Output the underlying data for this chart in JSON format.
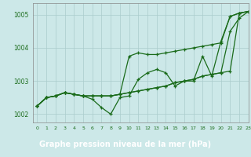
{
  "xlabel": "Graphe pression niveau de la mer (hPa)",
  "ylim": [
    1001.75,
    1005.35
  ],
  "xlim": [
    -0.5,
    23
  ],
  "yticks": [
    1002,
    1003,
    1004,
    1005
  ],
  "xticks": [
    0,
    1,
    2,
    3,
    4,
    5,
    6,
    7,
    8,
    9,
    10,
    11,
    12,
    13,
    14,
    15,
    16,
    17,
    18,
    19,
    20,
    21,
    22,
    23
  ],
  "bg_color": "#cce8e8",
  "line_color": "#1a6b1a",
  "lines": [
    [
      1002.25,
      1002.5,
      1002.55,
      1002.65,
      1002.6,
      1002.55,
      1002.45,
      1002.2,
      1002.0,
      1002.5,
      1002.55,
      1003.05,
      1003.25,
      1003.35,
      1003.25,
      1002.85,
      1003.0,
      1003.0,
      1003.75,
      1003.15,
      1004.2,
      1004.95,
      1005.05,
      1005.1
    ],
    [
      1002.25,
      1002.5,
      1002.55,
      1002.65,
      1002.6,
      1002.55,
      1002.55,
      1002.55,
      1002.55,
      1002.6,
      1002.65,
      1002.7,
      1002.75,
      1002.8,
      1002.85,
      1002.95,
      1003.0,
      1003.05,
      1003.15,
      1003.2,
      1003.25,
      1004.5,
      1004.9,
      1005.1
    ],
    [
      1002.25,
      1002.5,
      1002.55,
      1002.65,
      1002.6,
      1002.55,
      1002.55,
      1002.55,
      1002.55,
      1002.6,
      1003.75,
      1003.85,
      1003.8,
      1003.8,
      1003.85,
      1003.9,
      1003.95,
      1004.0,
      1004.05,
      1004.1,
      1004.15,
      1004.95,
      1005.05,
      1005.1
    ],
    [
      1002.25,
      1002.5,
      1002.55,
      1002.65,
      1002.6,
      1002.55,
      1002.55,
      1002.55,
      1002.55,
      1002.6,
      1002.65,
      1002.7,
      1002.75,
      1002.8,
      1002.85,
      1002.95,
      1003.0,
      1003.05,
      1003.15,
      1003.2,
      1003.25,
      1003.3,
      1005.05,
      1005.1
    ]
  ],
  "xlabel_bg": "#2d6b2d",
  "xlabel_color": "#ffffff",
  "tick_color": "#1a6b1a",
  "grid_color": "#aacccc",
  "spine_color": "#888888"
}
